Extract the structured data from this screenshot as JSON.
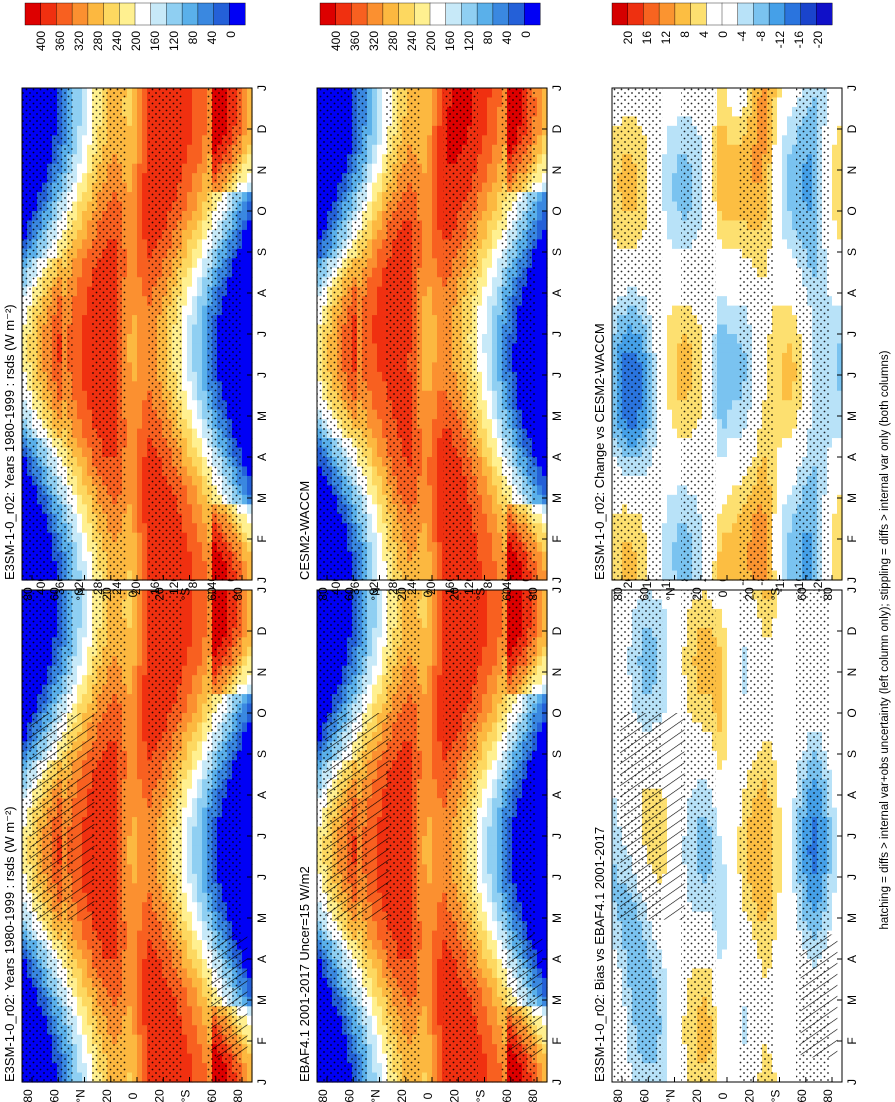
{
  "footer_note": "hatching = diffs > internal var+obs uncertainty (left column only); stippling = diffs > internal var only (both columns)",
  "months": [
    "J",
    "F",
    "M",
    "A",
    "M",
    "J",
    "J",
    "A",
    "S",
    "O",
    "N",
    "D",
    "J"
  ],
  "lat_ticks": [
    "80",
    "60",
    "°N",
    "20",
    "0",
    "20",
    "°S",
    "60",
    "80"
  ],
  "chart_data": [
    {
      "type": "heatmap",
      "column": "left",
      "row": 1,
      "title": "E3SM-1-0_r02: Years 1980-1999 : rsds (W m⁻²)",
      "colorbar_ticks": [
        "400",
        "360",
        "320",
        "280",
        "240",
        "200",
        "160",
        "120",
        "80",
        "40",
        "0"
      ],
      "range": [
        0,
        400
      ],
      "field": "rsds",
      "hatching": true,
      "stippling": true
    },
    {
      "type": "heatmap",
      "column": "left",
      "row": 2,
      "title": "EBAF4.1 2001-2017 Uncer=15 W/m2",
      "colorbar_ticks": [
        "400",
        "360",
        "320",
        "280",
        "240",
        "200",
        "160",
        "120",
        "80",
        "40",
        "0"
      ],
      "range": [
        0,
        400
      ],
      "field": "rsds",
      "hatching": true,
      "stippling": true
    },
    {
      "type": "heatmap",
      "column": "left",
      "row": 3,
      "title": "E3SM-1-0_r02: Bias vs EBAF4.1 2001-2017",
      "colorbar_ticks": [
        "20",
        "16",
        "12",
        "8",
        "4",
        "0",
        "-4",
        "-8",
        "-12",
        "-16",
        "-20"
      ],
      "range": [
        -20,
        20
      ],
      "field": "diff",
      "hatching": true,
      "stippling": true
    },
    {
      "type": "heatmap",
      "column": "right",
      "row": 1,
      "title": "E3SM-1-0_r02: Years 1980-1999 : rsds (W m⁻²)",
      "colorbar_ticks": [
        "400",
        "360",
        "320",
        "280",
        "240",
        "200",
        "160",
        "120",
        "80",
        "40",
        "0"
      ],
      "range": [
        0,
        400
      ],
      "field": "rsds",
      "hatching": false,
      "stippling": true
    },
    {
      "type": "heatmap",
      "column": "right",
      "row": 2,
      "title": "CESM2-WACCM",
      "colorbar_ticks": [
        "400",
        "360",
        "320",
        "280",
        "240",
        "200",
        "160",
        "120",
        "80",
        "40",
        "0"
      ],
      "range": [
        0,
        400
      ],
      "field": "rsds",
      "hatching": false,
      "stippling": true
    },
    {
      "type": "heatmap",
      "column": "right",
      "row": 3,
      "title": "E3SM-1-0_r02: Change vs CESM2-WACCM",
      "colorbar_ticks": [
        "20",
        "16",
        "12",
        "8",
        "4",
        "0",
        "-4",
        "-8",
        "-12",
        "-16",
        "-20"
      ],
      "range": [
        -20,
        20
      ],
      "field": "diff",
      "hatching": false,
      "stippling": true
    }
  ]
}
